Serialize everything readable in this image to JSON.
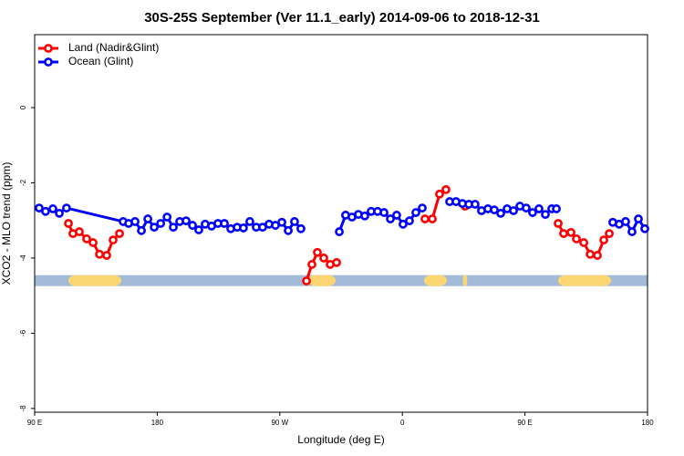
{
  "chart_data": {
    "type": "line",
    "title": "30S-25S September (Ver 11.1_early)   2014-09-06 to 2018-12-31",
    "xlabel": "Longitude (deg E)",
    "ylabel": "XCO2 - MLO trend (ppm)",
    "xlim": [
      90,
      540
    ],
    "ylim": [
      -8.1,
      1.94
    ],
    "xticks": [
      {
        "value": 90,
        "label": "90 E"
      },
      180,
      {
        "value": 270,
        "label": "90 W"
      },
      {
        "value": 360,
        "label": "0"
      },
      {
        "value": 450,
        "label": "90 E"
      },
      {
        "value": 540,
        "label": "180"
      }
    ],
    "yticks": [
      0,
      -2,
      -4,
      -6,
      -8
    ],
    "legend": "top-left",
    "band": {
      "y": -4.6,
      "color": "#a3bbd8",
      "land_color": "#fcd672",
      "land_segments": [
        [
          114.8,
          153.6
        ],
        [
          290.9,
          311.0
        ],
        [
          375.9,
          392.7
        ],
        [
          404.5,
          407.5
        ],
        [
          474.4,
          513.2
        ]
      ]
    },
    "series": [
      {
        "name": "Land (Nadir&Glint)",
        "color": "#ff0000",
        "x": [
          114.8,
          118.1,
          122.8,
          128.2,
          132.9,
          137.6,
          142.9,
          147.6,
          152.3,
          null,
          289.6,
          293.6,
          297.6,
          302.3,
          307.0,
          311.7,
          null,
          376.6,
          382.0,
          387.3,
          392.0,
          null,
          406.1,
          null,
          474.4,
          478.4,
          483.8,
          487.8,
          493.2,
          497.9,
          503.2,
          507.9,
          511.9
        ],
        "values": [
          -3.08,
          -3.35,
          -3.3,
          -3.49,
          -3.59,
          -3.9,
          -3.93,
          -3.52,
          -3.35,
          null,
          -4.61,
          -4.17,
          -3.85,
          -4.0,
          -4.17,
          -4.12,
          null,
          -2.96,
          -2.96,
          -2.3,
          -2.18,
          null,
          -2.62,
          null,
          -3.08,
          -3.35,
          -3.32,
          -3.49,
          -3.59,
          -3.9,
          -3.93,
          -3.52,
          -3.35
        ]
      },
      {
        "name": "Ocean (Glint)",
        "color": "#0000ff",
        "x": [
          93.3,
          98.0,
          103.4,
          108.1,
          113.4,
          155.0,
          159.0,
          163.7,
          168.4,
          173.1,
          177.8,
          182.5,
          187.2,
          191.8,
          196.5,
          201.2,
          205.9,
          210.5,
          215.2,
          219.9,
          224.6,
          229.3,
          234.0,
          238.7,
          243.3,
          248.0,
          252.7,
          257.4,
          262.1,
          266.8,
          271.5,
          276.2,
          280.8,
          285.5,
          null,
          313.7,
          318.3,
          323.0,
          327.7,
          332.4,
          337.1,
          341.8,
          346.5,
          351.2,
          355.8,
          360.5,
          365.2,
          369.9,
          374.6,
          null,
          394.7,
          399.4,
          404.1,
          408.8,
          413.4,
          418.1,
          422.8,
          427.5,
          432.2,
          436.9,
          441.6,
          446.3,
          450.9,
          455.6,
          460.3,
          465.0,
          469.7,
          473.1,
          null,
          514.5,
          519.2,
          523.9,
          528.6,
          533.3,
          538.0
        ],
        "values": [
          -2.67,
          -2.76,
          -2.69,
          -2.81,
          -2.67,
          -3.03,
          -3.08,
          -3.03,
          -3.27,
          -2.96,
          -3.18,
          -3.08,
          -2.91,
          -3.18,
          -3.03,
          -3.01,
          -3.13,
          -3.25,
          -3.1,
          -3.15,
          -3.08,
          -3.08,
          -3.22,
          -3.18,
          -3.2,
          -3.03,
          -3.18,
          -3.18,
          -3.1,
          -3.13,
          -3.05,
          -3.27,
          -3.03,
          -3.22,
          null,
          -3.3,
          -2.86,
          -2.91,
          -2.84,
          -2.88,
          -2.76,
          -2.76,
          -2.79,
          -2.96,
          -2.86,
          -3.1,
          -3.01,
          -2.79,
          -2.67,
          null,
          -2.5,
          -2.5,
          -2.55,
          -2.57,
          -2.57,
          -2.74,
          -2.69,
          -2.72,
          -2.81,
          -2.69,
          -2.74,
          -2.62,
          -2.67,
          -2.79,
          -2.69,
          -2.84,
          -2.69,
          -2.69,
          null,
          -3.05,
          -3.1,
          -3.03,
          -3.3,
          -2.96,
          -3.22
        ]
      }
    ]
  }
}
